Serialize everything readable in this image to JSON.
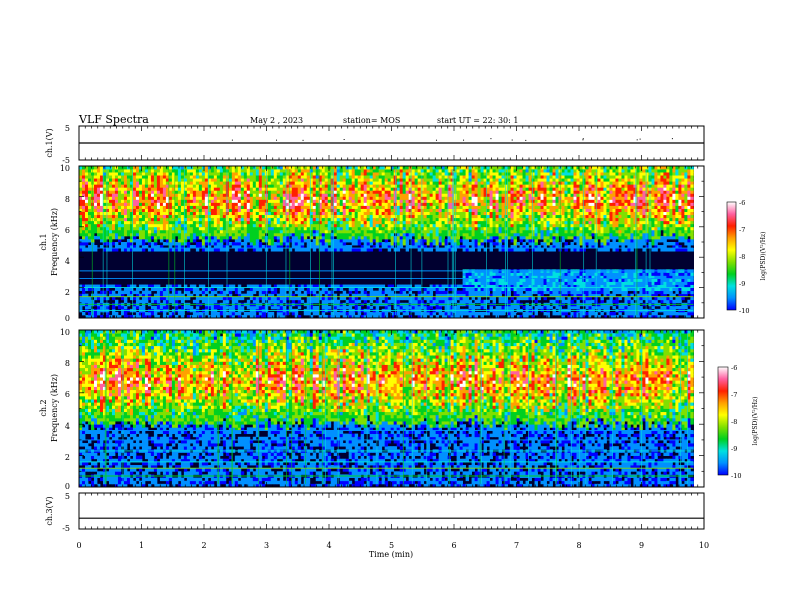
{
  "header": {
    "title": "VLF Spectra",
    "date": "May 2 , 2023",
    "station": "station= MOS",
    "start": "start UT = 22: 30: 1"
  },
  "chart_data": [
    {
      "type": "line",
      "panel": "ch1-voltage",
      "ylabel": "ch.1(V)",
      "ylim": [
        -5,
        5
      ],
      "yticks": [
        "5",
        "-5"
      ],
      "signal_level": 0,
      "xlim": [
        0,
        10
      ]
    },
    {
      "type": "heatmap",
      "panel": "ch1-spectrogram",
      "ylabel": "ch.1 Frequency (kHz)",
      "ylabel_line1": "ch.1",
      "ylabel_line2": "Frequency (kHz)",
      "ylim": [
        0,
        10
      ],
      "yticks": [
        "0",
        "2",
        "4",
        "6",
        "8",
        "10"
      ],
      "xlim": [
        0,
        9.83
      ],
      "band_peak_kHz": 7.8,
      "band_low_kHz": 5.2,
      "event_change_min": 6.1,
      "colorbar": {
        "label": "log(PSD)(V²/Hz)",
        "range": [
          -10,
          -6
        ],
        "ticks": [
          "-6",
          "-7",
          "-8",
          "-9",
          "-10"
        ]
      }
    },
    {
      "type": "heatmap",
      "panel": "ch2-spectrogram",
      "ylabel": "ch.2 Frequency (kHz)",
      "ylabel_line1": "ch.2",
      "ylabel_line2": "Frequency (kHz)",
      "ylim": [
        0,
        10
      ],
      "yticks": [
        "0",
        "2",
        "4",
        "6",
        "8",
        "10"
      ],
      "xlim": [
        0,
        9.83
      ],
      "band_peak_kHz": 6.8,
      "band_low_kHz": 4.0,
      "colorbar": {
        "label": "log(PSD)(V²/Hz)",
        "range": [
          -10,
          -6
        ],
        "ticks": [
          "-6",
          "-7",
          "-8",
          "-9",
          "-10"
        ]
      }
    },
    {
      "type": "line",
      "panel": "ch3-voltage",
      "ylabel": "ch.3(V)",
      "ylim": [
        -5,
        5
      ],
      "yticks": [
        "5",
        "-5"
      ],
      "signal_level": -2,
      "xlim": [
        0,
        10
      ]
    }
  ],
  "xaxis": {
    "label": "Time (min)",
    "range": [
      0,
      10
    ],
    "ticks": [
      "0",
      "1",
      "2",
      "3",
      "4",
      "5",
      "6",
      "7",
      "8",
      "9",
      "10"
    ]
  },
  "colors": {
    "scale": [
      "#000060",
      "#0000ff",
      "#0090ff",
      "#00e0e0",
      "#00d020",
      "#80e000",
      "#ffff00",
      "#ffa000",
      "#ff2000",
      "#ff60a0",
      "#ffffff"
    ]
  }
}
